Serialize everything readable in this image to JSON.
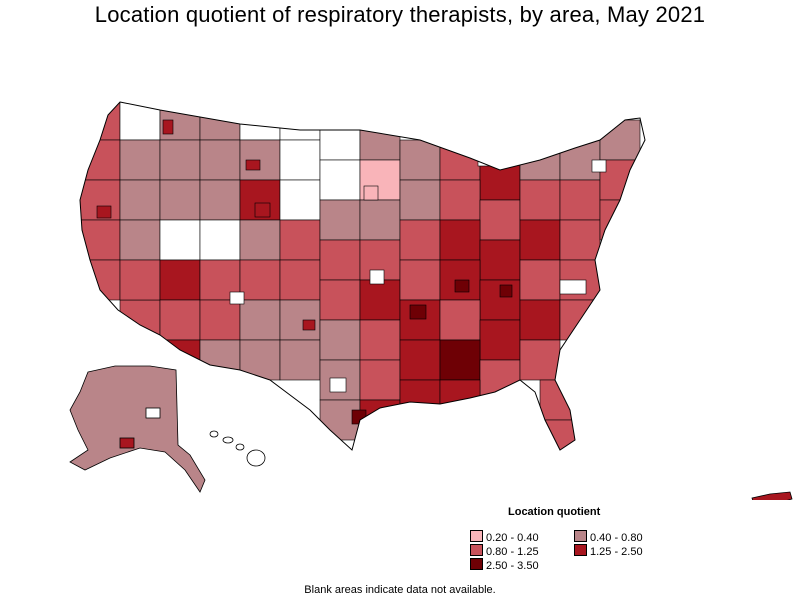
{
  "title": "Location quotient of respiratory therapists, by area, May 2021",
  "legend": {
    "title": "Location quotient",
    "items": [
      {
        "label": "0.20 - 0.40",
        "color": "#f9b4b9"
      },
      {
        "label": "0.40 - 0.80",
        "color": "#b98589"
      },
      {
        "label": "0.80 - 1.25",
        "color": "#c8525b"
      },
      {
        "label": "1.25 - 2.50",
        "color": "#a8161f"
      },
      {
        "label": "2.50 - 3.50",
        "color": "#6e0005"
      }
    ]
  },
  "footnote": "Blank areas indicate data not available.",
  "colors": {
    "no_data": "#ffffff",
    "border": "#000000"
  }
}
